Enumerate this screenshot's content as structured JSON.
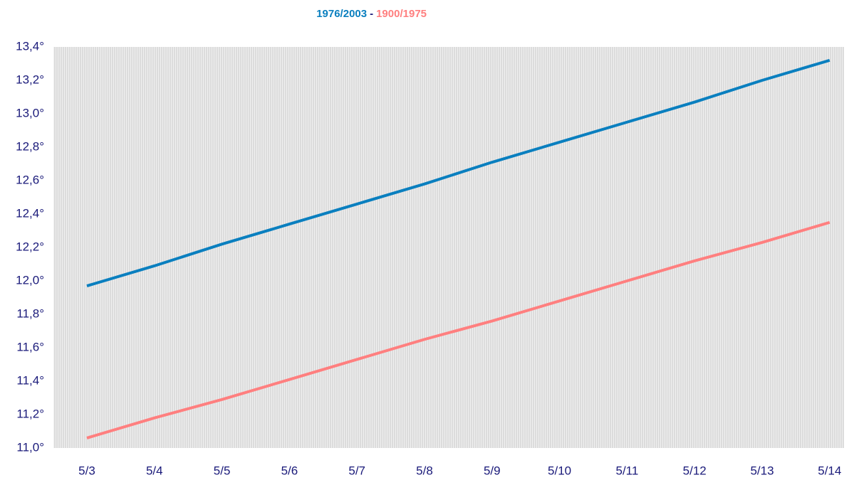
{
  "chart_data": {
    "type": "line",
    "legend_separator": "-",
    "categories": [
      "5/3",
      "5/4",
      "5/5",
      "5/6",
      "5/7",
      "5/8",
      "5/9",
      "5/10",
      "5/11",
      "5/12",
      "5/13",
      "5/14"
    ],
    "series": [
      {
        "name": "1976/2003",
        "color": "#0a7fbf",
        "values": [
          11.97,
          12.09,
          12.22,
          12.34,
          12.46,
          12.58,
          12.71,
          12.83,
          12.95,
          13.07,
          13.2,
          13.32
        ]
      },
      {
        "name": "1900/1975",
        "color": "#ff7f7f",
        "values": [
          11.06,
          11.18,
          11.29,
          11.41,
          11.53,
          11.65,
          11.76,
          11.88,
          12.0,
          12.12,
          12.23,
          12.35
        ]
      }
    ],
    "ylim": [
      11.0,
      13.4
    ],
    "yticks": [
      {
        "value": 11.0,
        "label": "11,0°"
      },
      {
        "value": 11.2,
        "label": "11,2°"
      },
      {
        "value": 11.4,
        "label": "11,4°"
      },
      {
        "value": 11.6,
        "label": "11,6°"
      },
      {
        "value": 11.8,
        "label": "11,8°"
      },
      {
        "value": 12.0,
        "label": "12,0°"
      },
      {
        "value": 12.2,
        "label": "12,2°"
      },
      {
        "value": 12.4,
        "label": "12,4°"
      },
      {
        "value": 12.6,
        "label": "12,6°"
      },
      {
        "value": 12.8,
        "label": "12,8°"
      },
      {
        "value": 13.0,
        "label": "13,0°"
      },
      {
        "value": 13.2,
        "label": "13,2°"
      },
      {
        "value": 13.4,
        "label": "13,4°"
      }
    ],
    "grid": false
  }
}
